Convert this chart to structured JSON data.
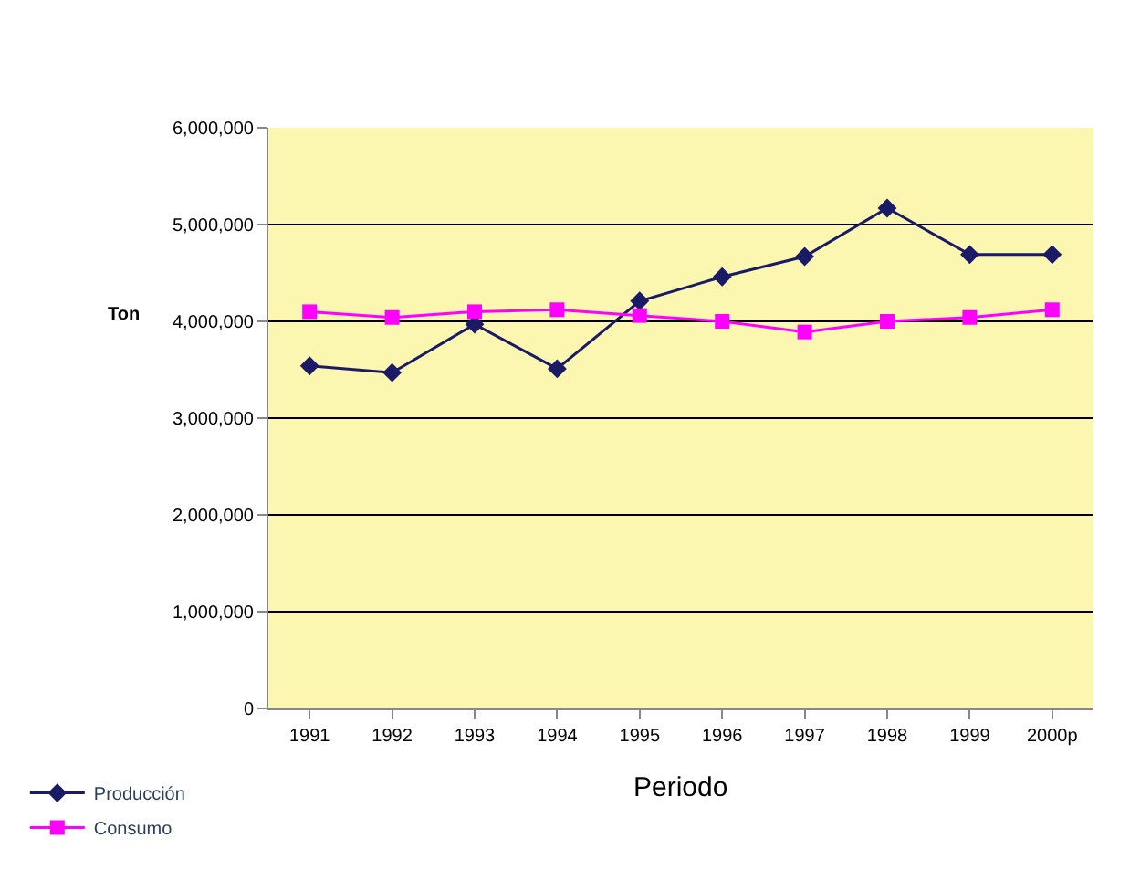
{
  "chart_data": {
    "type": "line",
    "xlabel": "Periodo",
    "ylabel": "Ton",
    "categories": [
      "1991",
      "1992",
      "1993",
      "1994",
      "1995",
      "1996",
      "1997",
      "1998",
      "1999",
      "2000p"
    ],
    "series": [
      {
        "name": "Producción",
        "color": "#1a1a66",
        "marker": "diamond",
        "values": [
          3540000,
          3470000,
          3970000,
          3510000,
          4210000,
          4460000,
          4670000,
          5170000,
          4690000,
          4690000
        ]
      },
      {
        "name": "Consumo",
        "color": "#ff00ff",
        "marker": "square",
        "values": [
          4100000,
          4040000,
          4100000,
          4120000,
          4060000,
          4000000,
          3890000,
          4000000,
          4040000,
          4120000
        ]
      }
    ],
    "ylim": [
      0,
      6000000
    ],
    "yticks": [
      {
        "value": 0,
        "label": "0"
      },
      {
        "value": 1000000,
        "label": "1,000,000"
      },
      {
        "value": 2000000,
        "label": "2,000,000"
      },
      {
        "value": 3000000,
        "label": "3,000,000"
      },
      {
        "value": 4000000,
        "label": "4,000,000"
      },
      {
        "value": 5000000,
        "label": "5,000,000"
      },
      {
        "value": 6000000,
        "label": "6,000,000"
      }
    ],
    "grid": "y",
    "legend": "bottom left",
    "line_style": "solid"
  }
}
